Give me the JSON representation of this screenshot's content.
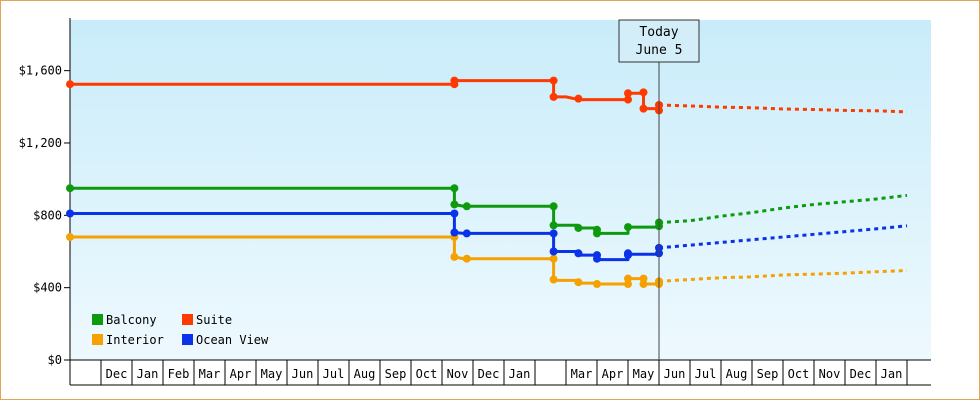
{
  "chart_data": {
    "type": "line",
    "title": "",
    "xlabel": "",
    "ylabel": "",
    "ylim": [
      0,
      1880
    ],
    "y_ticks": [
      {
        "value": 0,
        "label": "$0"
      },
      {
        "value": 400,
        "label": "$400"
      },
      {
        "value": 800,
        "label": "$800"
      },
      {
        "value": 1200,
        "label": "$1,200"
      },
      {
        "value": 1600,
        "label": "$1,600"
      }
    ],
    "months": [
      "",
      "Dec",
      "Jan",
      "Feb",
      "Mar",
      "Apr",
      "May",
      "Jun",
      "Jul",
      "Aug",
      "Sep",
      "Oct",
      "Nov",
      "Dec",
      "Jan",
      "",
      "Mar",
      "Apr",
      "May",
      "Jun",
      "Jul",
      "Aug",
      "Sep",
      "Oct",
      "Nov",
      "Dec",
      "Jan",
      ""
    ],
    "today_index": 19,
    "today": {
      "line1": "Today",
      "line2": "June 5"
    },
    "grid": false,
    "legend_position": "bottom-left",
    "series": [
      {
        "name": "Balcony",
        "color": "#0d9b0d",
        "points": [
          [
            0,
            950
          ],
          [
            12.4,
            950
          ],
          [
            12.4,
            860
          ],
          [
            12.7,
            850
          ],
          [
            15.6,
            850
          ],
          [
            15.6,
            745
          ],
          [
            16.4,
            745
          ],
          [
            16.4,
            730
          ],
          [
            17,
            730
          ],
          [
            17,
            700
          ],
          [
            18,
            700
          ],
          [
            18,
            735
          ],
          [
            19,
            735
          ],
          [
            19,
            760
          ]
        ],
        "markers": [
          [
            0,
            950
          ],
          [
            12.4,
            950
          ],
          [
            12.4,
            860
          ],
          [
            12.8,
            850
          ],
          [
            15.6,
            850
          ],
          [
            15.6,
            745
          ],
          [
            16.4,
            730
          ],
          [
            17,
            720
          ],
          [
            17,
            700
          ],
          [
            18,
            735
          ],
          [
            19,
            740
          ],
          [
            19,
            760
          ]
        ],
        "forecast": [
          [
            19,
            760
          ],
          [
            20,
            770
          ],
          [
            21,
            795
          ],
          [
            22,
            815
          ],
          [
            23,
            840
          ],
          [
            24,
            860
          ],
          [
            25,
            875
          ],
          [
            26,
            890
          ],
          [
            27,
            910
          ]
        ]
      },
      {
        "name": "Suite",
        "color": "#ff3a00",
        "points": [
          [
            0,
            1525
          ],
          [
            12.4,
            1525
          ],
          [
            12.4,
            1545
          ],
          [
            15.6,
            1545
          ],
          [
            15.6,
            1455
          ],
          [
            16,
            1455
          ],
          [
            16.4,
            1440
          ],
          [
            18,
            1440
          ],
          [
            18,
            1475
          ],
          [
            18.5,
            1475
          ],
          [
            18.5,
            1390
          ],
          [
            19,
            1390
          ],
          [
            19,
            1410
          ]
        ],
        "markers": [
          [
            0,
            1525
          ],
          [
            12.4,
            1525
          ],
          [
            12.4,
            1545
          ],
          [
            15.6,
            1545
          ],
          [
            15.6,
            1455
          ],
          [
            16.4,
            1445
          ],
          [
            18,
            1440
          ],
          [
            18,
            1475
          ],
          [
            18.5,
            1480
          ],
          [
            18.5,
            1390
          ],
          [
            19,
            1380
          ],
          [
            19,
            1410
          ]
        ],
        "forecast": [
          [
            19,
            1410
          ],
          [
            20,
            1405
          ],
          [
            21,
            1398
          ],
          [
            22,
            1395
          ],
          [
            23,
            1388
          ],
          [
            24,
            1385
          ],
          [
            25,
            1380
          ],
          [
            26,
            1378
          ],
          [
            27,
            1372
          ]
        ]
      },
      {
        "name": "Interior",
        "color": "#f5a100",
        "points": [
          [
            0,
            680
          ],
          [
            12.4,
            680
          ],
          [
            12.4,
            570
          ],
          [
            12.7,
            560
          ],
          [
            15.6,
            560
          ],
          [
            15.6,
            440
          ],
          [
            16.4,
            440
          ],
          [
            16.4,
            425
          ],
          [
            17,
            425
          ],
          [
            17,
            420
          ],
          [
            18,
            420
          ],
          [
            18,
            450
          ],
          [
            18.5,
            450
          ],
          [
            18.5,
            420
          ],
          [
            19,
            420
          ],
          [
            19,
            435
          ]
        ],
        "markers": [
          [
            0,
            680
          ],
          [
            12.4,
            680
          ],
          [
            12.4,
            570
          ],
          [
            12.8,
            560
          ],
          [
            15.6,
            560
          ],
          [
            15.6,
            445
          ],
          [
            16.4,
            430
          ],
          [
            17,
            420
          ],
          [
            18,
            420
          ],
          [
            18,
            450
          ],
          [
            18.5,
            450
          ],
          [
            18.5,
            420
          ],
          [
            19,
            420
          ],
          [
            19,
            435
          ]
        ],
        "forecast": [
          [
            19,
            435
          ],
          [
            20,
            445
          ],
          [
            21,
            455
          ],
          [
            22,
            460
          ],
          [
            23,
            470
          ],
          [
            24,
            475
          ],
          [
            25,
            480
          ],
          [
            26,
            488
          ],
          [
            27,
            495
          ]
        ]
      },
      {
        "name": "Ocean View",
        "color": "#0a32e8",
        "points": [
          [
            0,
            810
          ],
          [
            12.4,
            810
          ],
          [
            12.4,
            705
          ],
          [
            12.7,
            700
          ],
          [
            15.6,
            700
          ],
          [
            15.6,
            600
          ],
          [
            16.4,
            600
          ],
          [
            16.4,
            580
          ],
          [
            17,
            580
          ],
          [
            17,
            555
          ],
          [
            18,
            555
          ],
          [
            18,
            585
          ],
          [
            19,
            585
          ],
          [
            19,
            620
          ]
        ],
        "markers": [
          [
            0,
            810
          ],
          [
            12.4,
            810
          ],
          [
            12.4,
            705
          ],
          [
            12.8,
            700
          ],
          [
            15.6,
            700
          ],
          [
            15.6,
            600
          ],
          [
            16.4,
            590
          ],
          [
            17,
            580
          ],
          [
            17,
            560
          ],
          [
            18,
            580
          ],
          [
            18,
            590
          ],
          [
            19,
            590
          ],
          [
            19,
            620
          ]
        ],
        "forecast": [
          [
            19,
            620
          ],
          [
            20,
            635
          ],
          [
            21,
            650
          ],
          [
            22,
            665
          ],
          [
            23,
            680
          ],
          [
            24,
            695
          ],
          [
            25,
            710
          ],
          [
            26,
            725
          ],
          [
            27,
            742
          ]
        ]
      }
    ]
  }
}
